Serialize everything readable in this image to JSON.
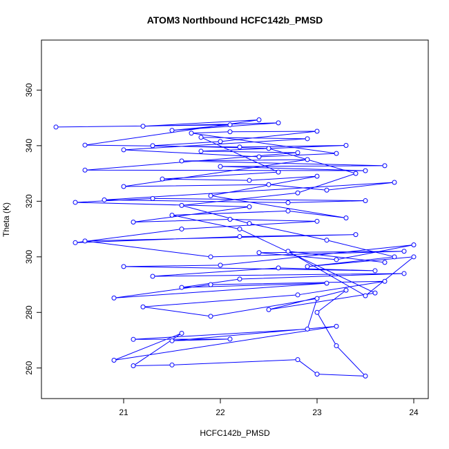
{
  "chart_data": {
    "type": "line",
    "markers": true,
    "title": "ATOM3 Northbound HCFC142b_PMSD",
    "x_label": "HCFC142b_PMSD",
    "y_label": "Theta (K)",
    "color": "#0000ff",
    "xlim": [
      20.15,
      24.15
    ],
    "ylim": [
      249,
      378
    ],
    "xticks": [
      21,
      22,
      23,
      24
    ],
    "yticks": [
      260,
      280,
      300,
      320,
      340,
      360
    ],
    "x": [
      20.3,
      22.1,
      21.5,
      22.6,
      21.2,
      22.4,
      20.6,
      22.2,
      23.3,
      21.8,
      22.8,
      20.6,
      23.5,
      22.0,
      23.7,
      21.6,
      22.9,
      21.0,
      22.5,
      23.1,
      23.8,
      20.8,
      22.7,
      23.5,
      21.3,
      20.5,
      22.3,
      21.1,
      22.1,
      23.0,
      21.6,
      20.5,
      22.2,
      23.4,
      20.6,
      21.9,
      23.9,
      22.4,
      23.2,
      24.0,
      22.0,
      21.0,
      23.6,
      22.6,
      21.3,
      23.9,
      22.2,
      21.6,
      23.1,
      20.9,
      21.9,
      23.7,
      22.8,
      21.2,
      21.9,
      23.0,
      22.9,
      21.1,
      22.1,
      21.5,
      23.2,
      20.9,
      21.6,
      21.1,
      21.5,
      22.8,
      23.0,
      23.5,
      23.2,
      23.0,
      23.3,
      22.5,
      23.6,
      22.2,
      21.5,
      22.7,
      23.3,
      21.9,
      23.0,
      22.3,
      21.4,
      22.6,
      21.8,
      22.9,
      21.0,
      22.4,
      23.2,
      21.7,
      22.1,
      23.0,
      22.0,
      21.3,
      22.5,
      23.4,
      22.8,
      21.6,
      22.3,
      23.1,
      23.8,
      22.9,
      24.0,
      23.5,
      22.7,
      23.7
    ],
    "values": [
      346.7,
      347.5,
      345.5,
      348.2,
      347.0,
      349.3,
      340.2,
      339.5,
      340.1,
      338.0,
      337.5,
      331.2,
      331.0,
      332.5,
      332.8,
      334.5,
      335.0,
      325.3,
      326.0,
      324.0,
      326.8,
      320.5,
      319.5,
      320.2,
      321.0,
      319.6,
      318.0,
      312.5,
      313.5,
      312.8,
      310.0,
      305.1,
      307.3,
      308.0,
      305.7,
      300.0,
      302.0,
      301.5,
      299.0,
      304.3,
      297.0,
      296.5,
      295.0,
      296.0,
      293.0,
      294.0,
      292.0,
      289.0,
      290.5,
      285.2,
      290.0,
      291.2,
      286.3,
      282.0,
      278.6,
      285.0,
      274.0,
      270.3,
      270.4,
      269.8,
      275.0,
      262.8,
      272.5,
      260.8,
      261.1,
      263.0,
      257.8,
      257.1,
      268.0,
      280.0,
      288.0,
      281.0,
      287.0,
      310.0,
      315.0,
      316.5,
      314.0,
      322.0,
      329.0,
      327.5,
      328.0,
      330.5,
      343.0,
      342.5,
      338.5,
      336.0,
      337.2,
      344.5,
      345.0,
      345.2,
      341.5,
      340.0,
      339.0,
      330.0,
      323.0,
      318.5,
      312.0,
      306.0,
      300.0,
      296.5,
      300.0,
      286.0,
      302.0,
      298.0
    ]
  }
}
